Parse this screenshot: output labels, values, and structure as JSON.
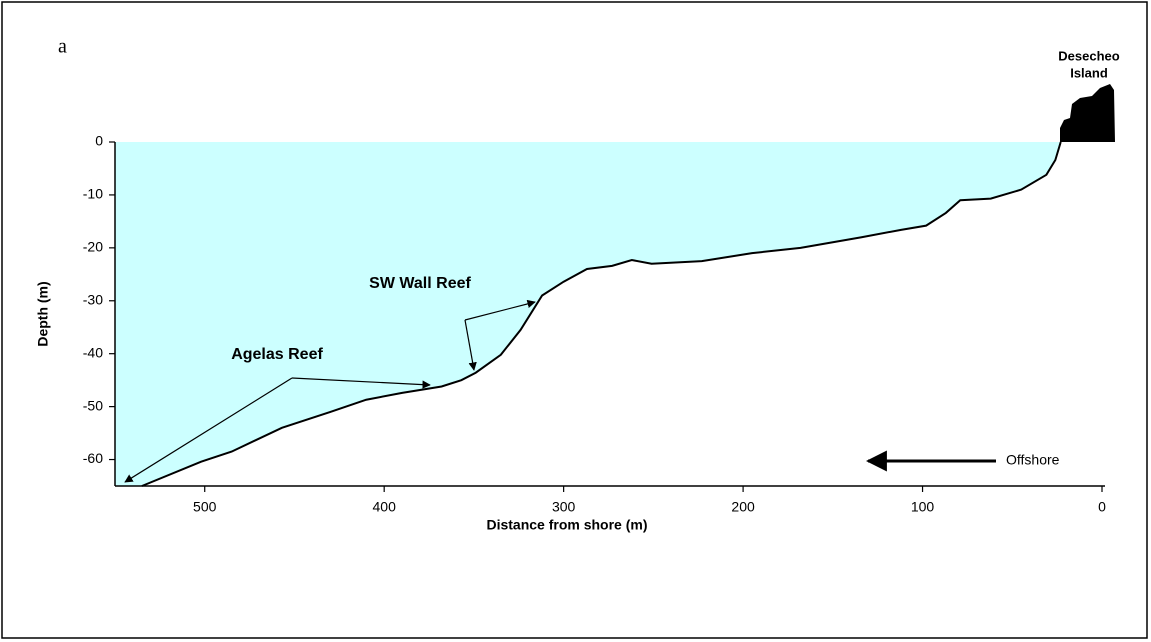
{
  "chart_data": {
    "type": "area",
    "panel_label": "a",
    "xlabel": "Distance from shore (m)",
    "ylabel": "Depth (m)",
    "x": [
      535,
      502,
      485,
      457,
      430,
      410,
      390,
      368,
      357,
      349,
      335,
      324,
      312,
      300,
      287,
      273,
      262,
      251,
      223,
      195,
      168,
      134,
      112,
      98,
      87,
      79,
      62,
      45,
      31,
      26,
      23
    ],
    "values": [
      -65,
      -60.4,
      -58.5,
      -54,
      -51,
      -48.7,
      -47.4,
      -46.2,
      -45,
      -43.6,
      -40.2,
      -35.5,
      -29,
      -26.4,
      -24,
      -23.4,
      -22.3,
      -23,
      -22.5,
      -21,
      -20,
      -18,
      -16.6,
      -15.8,
      -13.4,
      -11,
      -10.7,
      -9,
      -6.2,
      -3.4,
      0
    ],
    "color": "#ccffff",
    "xlim": [
      550,
      0
    ],
    "xticks": [
      500,
      400,
      300,
      200,
      100,
      0
    ],
    "ylim": [
      -65,
      0
    ],
    "yticks": [
      0,
      -10,
      -20,
      -30,
      -40,
      -50,
      -60
    ],
    "annotations": {
      "island": [
        "Desecheo",
        "Island"
      ],
      "sw_wall": "SW Wall Reef",
      "agelas": "Agelas Reef",
      "offshore": "Offshore"
    }
  }
}
